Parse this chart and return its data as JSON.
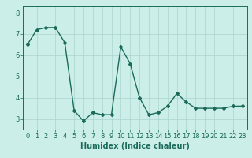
{
  "x": [
    0,
    1,
    2,
    3,
    4,
    5,
    6,
    7,
    8,
    9,
    10,
    11,
    12,
    13,
    14,
    15,
    16,
    17,
    18,
    19,
    20,
    21,
    22,
    23
  ],
  "y": [
    6.5,
    7.2,
    7.3,
    7.3,
    6.6,
    3.4,
    2.9,
    3.3,
    3.2,
    3.2,
    6.4,
    5.6,
    4.0,
    3.2,
    3.3,
    3.6,
    4.2,
    3.8,
    3.5,
    3.5,
    3.5,
    3.5,
    3.6,
    3.6
  ],
  "line_color": "#1a6b5a",
  "marker": "D",
  "marker_size": 2,
  "line_width": 1.0,
  "xlabel": "Humidex (Indice chaleur)",
  "ylim": [
    2.5,
    8.3
  ],
  "xlim": [
    -0.5,
    23.5
  ],
  "yticks": [
    3,
    4,
    5,
    6,
    7,
    8
  ],
  "xticks": [
    0,
    1,
    2,
    3,
    4,
    5,
    6,
    7,
    8,
    9,
    10,
    11,
    12,
    13,
    14,
    15,
    16,
    17,
    18,
    19,
    20,
    21,
    22,
    23
  ],
  "bg_color": "#cceee8",
  "grid_color": "#aad4ce",
  "xlabel_fontsize": 7,
  "tick_fontsize": 6
}
